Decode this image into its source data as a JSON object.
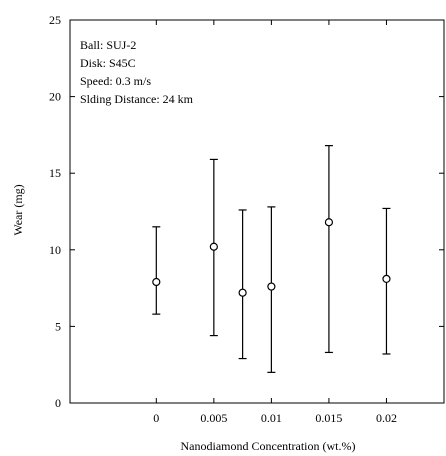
{
  "chart_data": {
    "type": "scatter",
    "x_categories": [
      "0",
      "0.005",
      "0.01",
      "0.015",
      "0.02"
    ],
    "x_tick_values": [
      0,
      0.005,
      0.01,
      0.015,
      0.02
    ],
    "xlim": [
      -0.0075,
      0.025
    ],
    "ylim": [
      0,
      25
    ],
    "y_ticks": [
      0,
      5,
      10,
      15,
      20,
      25
    ],
    "xlabel": "Nanodiamond Concentration (wt.%)",
    "ylabel": "Wear (mg)",
    "annotation_lines": [
      "Ball: SUJ-2",
      "Disk: S45C",
      "Speed: 0.3 m/s",
      "Slding Distance: 24 km"
    ],
    "series": [
      {
        "points": [
          {
            "x": 0.0,
            "y": 7.9,
            "err_low": 5.8,
            "err_high": 11.5
          },
          {
            "x": 0.005,
            "y": 10.2,
            "err_low": 4.4,
            "err_high": 15.9
          },
          {
            "x": 0.0075,
            "y": 7.2,
            "err_low": 2.9,
            "err_high": 12.6
          },
          {
            "x": 0.01,
            "y": 7.6,
            "err_low": 2.0,
            "err_high": 12.8
          },
          {
            "x": 0.015,
            "y": 11.8,
            "err_low": 3.3,
            "err_high": 16.8
          },
          {
            "x": 0.02,
            "y": 8.1,
            "err_low": 3.2,
            "err_high": 12.7
          }
        ]
      }
    ],
    "grid": false,
    "legend": "none"
  }
}
